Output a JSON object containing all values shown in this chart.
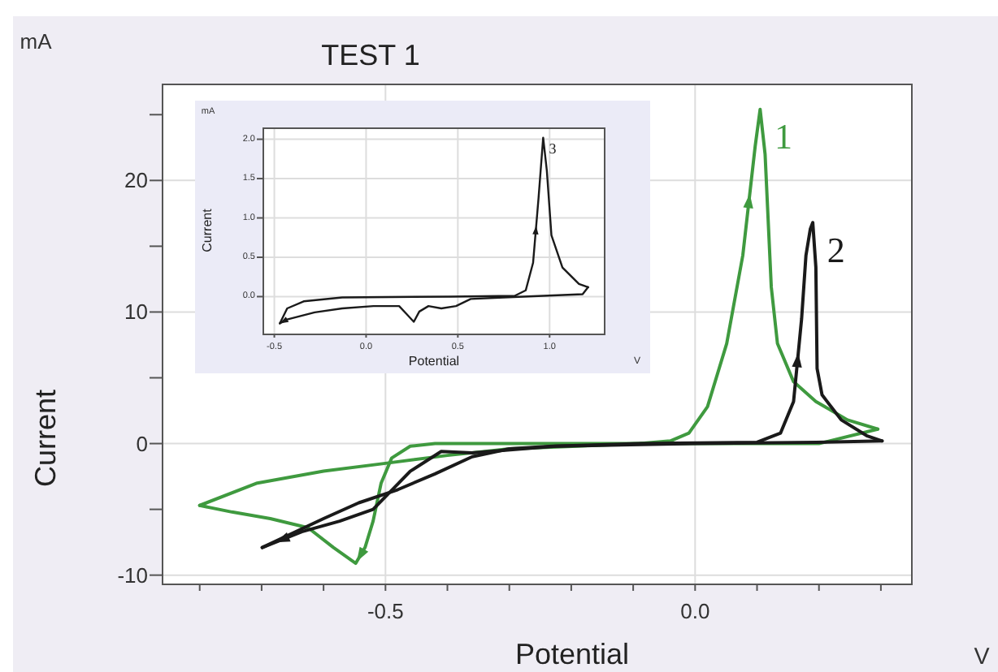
{
  "chart_data": [
    {
      "type": "line",
      "title": "TEST 1",
      "xlabel": "Potential",
      "ylabel": "Current",
      "annotations": [
        "mA",
        "V"
      ],
      "xlim": [
        -0.86,
        0.35
      ],
      "ylim": [
        -10.7,
        27.3
      ],
      "xticks": [
        {
          "value": -0.8,
          "label": null
        },
        {
          "value": -0.7,
          "label": null
        },
        {
          "value": -0.6,
          "label": null
        },
        {
          "value": -0.5,
          "label": "-0.5"
        },
        {
          "value": -0.4,
          "label": null
        },
        {
          "value": -0.3,
          "label": null
        },
        {
          "value": -0.2,
          "label": null
        },
        {
          "value": -0.1,
          "label": null
        },
        {
          "value": 0,
          "label": "0.0"
        },
        {
          "value": 0.1,
          "label": null
        },
        {
          "value": 0.2,
          "label": null
        },
        {
          "value": 0.3,
          "label": null
        }
      ],
      "yticks": [
        -10,
        {
          "value": -5,
          "label": null
        },
        0,
        {
          "value": 5,
          "label": null
        },
        10,
        {
          "value": 15,
          "label": null
        },
        20,
        {
          "value": 25,
          "label": null
        }
      ],
      "grid": true,
      "legend": false,
      "marker": "none",
      "line_style": "solid",
      "series": [
        {
          "name": "1",
          "color": "#3f9a3f",
          "x": [
            -0.8,
            -0.707,
            -0.6,
            -0.5,
            -0.4,
            -0.3,
            -0.19,
            -0.09,
            -0.04,
            -0.01,
            0.02,
            0.051,
            0.077,
            0.097,
            0.105,
            0.113,
            0.123,
            0.133,
            0.159,
            0.195,
            0.246,
            0.295
          ],
          "values": [
            -4.7,
            -3.0,
            -2.1,
            -1.5,
            -0.9,
            -0.4,
            -0.2,
            0,
            0.2,
            0.8,
            2.8,
            7.6,
            14.3,
            22.6,
            25.4,
            22,
            11.9,
            7.6,
            4.7,
            3.2,
            1.8,
            1.1
          ]
        },
        {
          "color": "#3f9a3f",
          "x": [
            0.295,
            0.2,
            0.0,
            -0.2,
            -0.42,
            -0.46,
            -0.49,
            -0.507,
            -0.52,
            -0.533,
            -0.548,
            -0.584,
            -0.625,
            -0.686,
            -0.748,
            -0.8
          ],
          "values": [
            1.1,
            0,
            0,
            0,
            0,
            -0.2,
            -1.1,
            -3.0,
            -5.9,
            -7.9,
            -9.1,
            -7.9,
            -6.4,
            -5.7,
            -5.2,
            -4.7
          ]
        },
        {
          "name": "2",
          "color": "#1a1a1a",
          "x": [
            -0.699,
            -0.6,
            -0.543,
            -0.48,
            -0.42,
            -0.36,
            -0.3,
            -0.23,
            -0.09,
            0.1,
            0.138,
            0.159,
            0.172,
            0.179,
            0.186,
            0.19,
            0.195,
            0.197,
            0.205,
            0.236,
            0.277,
            0.302
          ],
          "values": [
            -7.9,
            -5.7,
            -4.5,
            -3.5,
            -2.3,
            -1.0,
            -0.4,
            -0.2,
            0,
            0.1,
            0.8,
            3.2,
            9.5,
            14.3,
            16.3,
            16.8,
            13.4,
            5.7,
            3.7,
            1.8,
            0.6,
            0.2
          ]
        },
        {
          "color": "#1a1a1a",
          "x": [
            0.302,
            0.195,
            0.0,
            -0.225,
            -0.36,
            -0.41,
            -0.46,
            -0.52,
            -0.574,
            -0.635,
            -0.699
          ],
          "values": [
            0.2,
            0.1,
            0,
            -0.2,
            -0.7,
            -0.6,
            -2.1,
            -5.0,
            -5.9,
            -6.7,
            -7.9
          ]
        }
      ]
    },
    {
      "type": "line",
      "xlabel": "Potential",
      "ylabel": "Current",
      "annotations": [
        "mA",
        "V"
      ],
      "xlim": [
        -0.56,
        1.3
      ],
      "ylim": [
        -0.48,
        2.14
      ],
      "xticks": [
        {
          "value": -0.5,
          "label": "-0.5"
        },
        {
          "value": 0,
          "label": "0.0"
        },
        {
          "value": 0.5,
          "label": "0.5"
        },
        {
          "value": 1,
          "label": "1.0"
        }
      ],
      "yticks": [
        {
          "value": 0,
          "label": "0.0"
        },
        0.5,
        {
          "value": 1,
          "label": "1.0"
        },
        1.5,
        {
          "value": 2,
          "label": "2.0"
        }
      ],
      "grid": true,
      "legend": false,
      "marker": "none",
      "line_style": "solid",
      "series": [
        {
          "name": "3",
          "color": "#1a1a1a",
          "x": [
            -0.47,
            -0.43,
            -0.34,
            -0.13,
            0.46,
            0.81,
            0.87,
            0.91,
            0.94,
            0.965,
            0.985,
            1.01,
            1.07,
            1.16,
            1.21
          ],
          "values": [
            -0.34,
            -0.15,
            -0.06,
            -0.01,
            0,
            0.01,
            0.08,
            0.43,
            1.26,
            2.02,
            1.6,
            0.78,
            0.37,
            0.16,
            0.12
          ]
        },
        {
          "color": "#1a1a1a",
          "x": [
            1.21,
            1.18,
            0.75,
            0.57,
            0.49,
            0.41,
            0.34,
            0.29,
            0.26,
            0.22,
            0.18,
            0.04,
            -0.13,
            -0.28,
            -0.43,
            -0.47
          ],
          "values": [
            0.12,
            0.03,
            -0.01,
            -0.03,
            -0.12,
            -0.15,
            -0.12,
            -0.19,
            -0.32,
            -0.22,
            -0.12,
            -0.12,
            -0.15,
            -0.2,
            -0.29,
            -0.34
          ]
        }
      ]
    }
  ]
}
